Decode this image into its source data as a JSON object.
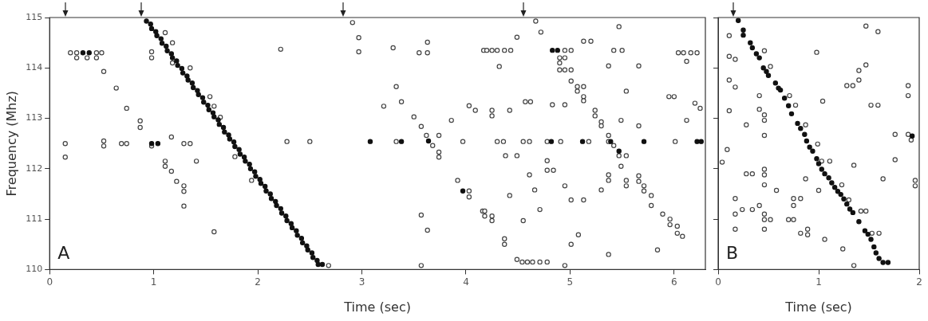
{
  "chart_data": [
    {
      "type": "scatter",
      "xlabel": "Time (sec)",
      "ylabel": "Frequency (Mhz)",
      "xlim": [
        0,
        6.3
      ],
      "xticks": [
        0,
        1,
        2,
        3,
        4,
        5,
        6
      ],
      "ylim": [
        110,
        115
      ],
      "yticks": [
        110,
        111,
        112,
        113,
        114,
        115
      ],
      "marker": "circle",
      "annotations": [
        "A"
      ],
      "series": [
        {
          "color": "#111111",
          "x": [
            0.93,
            0.98,
            1.03,
            1.08,
            1.13,
            1.18,
            1.23,
            1.28,
            1.33,
            1.38,
            1.43,
            1.48,
            1.53,
            1.58,
            1.63,
            1.68,
            1.73,
            1.78,
            1.83,
            1.88,
            1.93,
            1.98,
            2.03,
            2.08,
            2.13,
            2.18,
            2.23,
            2.28,
            2.33,
            2.38,
            2.43,
            2.48,
            2.53,
            2.58,
            0.97,
            1.02,
            1.07,
            1.12,
            1.17,
            1.22,
            1.27,
            1.32,
            1.37,
            1.42,
            1.47,
            1.52,
            1.57,
            1.62,
            1.67,
            1.72,
            1.77,
            1.82,
            1.87,
            1.92,
            1.97,
            2.02,
            2.07,
            2.12,
            2.17,
            2.22,
            2.27,
            2.32,
            2.37,
            2.42,
            2.47,
            2.52,
            2.57,
            2.62,
            0.98,
            1.04,
            3.08,
            3.38,
            3.64,
            3.97,
            4.82,
            5.12,
            5.39,
            5.47,
            5.71,
            6.22,
            6.26,
            4.83,
            4.88,
            0.32,
            0.38
          ],
          "values": [
            114.93,
            114.78,
            114.64,
            114.49,
            114.34,
            114.2,
            114.05,
            113.9,
            113.76,
            113.61,
            113.47,
            113.32,
            113.17,
            113.03,
            112.88,
            112.73,
            112.59,
            112.44,
            112.29,
            112.15,
            112.0,
            111.85,
            111.71,
            111.56,
            111.41,
            111.27,
            111.12,
            110.97,
            110.83,
            110.68,
            110.53,
            110.39,
            110.24,
            110.1,
            114.87,
            114.72,
            114.58,
            114.43,
            114.28,
            114.14,
            113.99,
            113.84,
            113.7,
            113.55,
            113.41,
            113.26,
            113.11,
            112.97,
            112.82,
            112.67,
            112.53,
            112.38,
            112.23,
            112.09,
            111.94,
            111.79,
            111.65,
            111.5,
            111.35,
            111.21,
            111.06,
            110.91,
            110.77,
            110.62,
            110.47,
            110.33,
            110.18,
            110.1,
            112.5,
            112.5,
            112.54,
            112.54,
            112.55,
            111.56,
            112.54,
            112.54,
            112.54,
            112.35,
            112.54,
            112.54,
            112.54,
            114.35,
            114.35,
            114.3,
            114.3
          ]
        },
        {
          "color": "#444444",
          "x": [
            0.2,
            0.26,
            0.45,
            0.5,
            0.26,
            0.36,
            0.45,
            0.52,
            0.64,
            0.74,
            0.87,
            0.87,
            0.15,
            0.15,
            0.52,
            0.52,
            0.69,
            0.74,
            0.98,
            0.98,
            0.98,
            1.17,
            1.29,
            1.35,
            1.11,
            1.11,
            1.17,
            1.22,
            1.29,
            1.29,
            1.29,
            1.41,
            1.58,
            1.11,
            1.18,
            1.18,
            1.35,
            1.54,
            1.58,
            1.64,
            1.78,
            1.94,
            2.91,
            2.97,
            2.97,
            2.22,
            3.3,
            3.63,
            3.55,
            3.63,
            3.33,
            3.21,
            3.38,
            3.5,
            3.57,
            2.28,
            2.5,
            3.33,
            3.62,
            3.68,
            3.74,
            3.74,
            3.74,
            3.86,
            3.97,
            3.92,
            4.03,
            4.03,
            3.57,
            3.63,
            3.57,
            2.68,
            4.17,
            4.03,
            4.09,
            4.16,
            4.67,
            4.72,
            4.49,
            4.2,
            4.25,
            4.3,
            4.37,
            4.43,
            4.32,
            4.95,
            5.01,
            4.9,
            4.95,
            4.9,
            4.9,
            4.95,
            5.01,
            5.13,
            5.2,
            5.42,
            5.5,
            5.47,
            5.37,
            5.66,
            5.01,
            5.07,
            5.13,
            5.07,
            5.13,
            5.13,
            5.54,
            5.95,
            6.0,
            4.57,
            4.62,
            4.25,
            4.25,
            4.42,
            4.83,
            4.95,
            5.24,
            5.24,
            5.3,
            5.3,
            5.49,
            5.66,
            6.12,
            4.3,
            4.36,
            4.55,
            4.61,
            4.78,
            4.91,
            5.18,
            5.37,
            6.01,
            5.37,
            5.42,
            5.47,
            5.54,
            5.49,
            4.38,
            4.49,
            4.78,
            4.78,
            4.84,
            4.61,
            5.37,
            5.37,
            5.54,
            5.54,
            5.66,
            5.66,
            4.95,
            4.66,
            5.3,
            5.71,
            5.71,
            5.78,
            5.78,
            4.42,
            5.01,
            5.13,
            4.71,
            5.89,
            5.96,
            5.96,
            6.03,
            6.03,
            6.08,
            4.18,
            4.18,
            4.25,
            4.25,
            4.55,
            4.37,
            4.37,
            5.08,
            5.01,
            5.37,
            5.84,
            4.49,
            4.54,
            4.59,
            4.64,
            4.71,
            4.78,
            4.95,
            6.04,
            6.09,
            6.16,
            6.22,
            6.12,
            6.2,
            6.25
          ],
          "values": [
            114.3,
            114.3,
            114.3,
            114.3,
            114.2,
            114.2,
            114.2,
            113.93,
            113.6,
            113.2,
            112.95,
            112.82,
            112.5,
            112.23,
            112.55,
            112.45,
            112.5,
            112.5,
            112.45,
            114.32,
            114.2,
            112.63,
            112.5,
            112.5,
            112.15,
            112.05,
            111.95,
            111.75,
            111.66,
            111.55,
            111.26,
            112.15,
            110.75,
            114.7,
            114.5,
            114.1,
            114.0,
            113.43,
            113.24,
            113.02,
            112.24,
            111.77,
            114.9,
            114.6,
            114.32,
            114.37,
            114.4,
            114.51,
            114.3,
            114.3,
            113.63,
            113.24,
            113.33,
            113.03,
            112.84,
            112.54,
            112.54,
            112.54,
            112.66,
            112.46,
            112.66,
            112.33,
            112.23,
            112.96,
            112.54,
            111.77,
            111.56,
            111.44,
            111.08,
            110.78,
            110.08,
            110.08,
            114.35,
            113.25,
            113.16,
            111.16,
            114.93,
            114.71,
            114.61,
            114.35,
            114.35,
            114.35,
            114.35,
            114.35,
            114.03,
            114.35,
            114.35,
            114.2,
            114.2,
            114.1,
            113.96,
            113.96,
            113.96,
            114.53,
            114.53,
            114.35,
            114.35,
            114.82,
            114.04,
            114.04,
            113.74,
            113.63,
            113.63,
            113.54,
            113.43,
            113.35,
            113.54,
            113.43,
            113.43,
            113.33,
            113.33,
            113.16,
            113.05,
            113.16,
            113.27,
            113.27,
            113.16,
            113.05,
            112.93,
            112.85,
            112.96,
            112.85,
            112.96,
            112.54,
            112.54,
            112.54,
            112.54,
            112.54,
            112.54,
            112.54,
            112.54,
            112.54,
            112.66,
            112.46,
            112.26,
            112.26,
            112.05,
            112.26,
            112.26,
            112.16,
            111.97,
            111.97,
            111.88,
            111.88,
            111.77,
            111.77,
            111.66,
            111.86,
            111.75,
            111.66,
            111.58,
            111.58,
            111.66,
            111.56,
            111.47,
            111.27,
            111.47,
            111.38,
            111.38,
            111.19,
            111.1,
            111.0,
            110.89,
            110.86,
            110.72,
            110.66,
            111.16,
            111.06,
            111.06,
            110.97,
            110.97,
            110.61,
            110.5,
            110.69,
            110.5,
            110.3,
            110.39,
            110.2,
            110.15,
            110.15,
            110.15,
            110.15,
            110.15,
            110.08,
            114.3,
            114.3,
            114.3,
            114.3,
            114.13,
            113.3,
            113.2
          ]
        }
      ]
    },
    {
      "type": "scatter",
      "xlabel": "Time (sec)",
      "xlim": [
        0,
        2
      ],
      "xticks": [
        0,
        1,
        2
      ],
      "ylim": [
        110,
        115
      ],
      "yticks": [
        110,
        111,
        112,
        113,
        114,
        115
      ],
      "tick_labels": "x",
      "marker": "circle",
      "annotations": [
        "B"
      ],
      "series": [
        {
          "color": "#111111",
          "x": [
            0.2,
            0.32,
            0.38,
            0.45,
            0.57,
            0.62,
            0.73,
            0.79,
            0.86,
            0.91,
            0.98,
            1.03,
            1.1,
            1.16,
            1.22,
            1.28,
            1.34,
            1.46,
            1.52,
            1.57,
            1.64,
            1.69,
            0.25,
            0.25,
            0.34,
            0.41,
            0.48,
            0.5,
            0.6,
            0.66,
            0.7,
            0.82,
            0.88,
            0.94,
            1.0,
            1.06,
            1.13,
            1.19,
            1.25,
            1.31,
            1.4,
            1.49,
            1.55,
            1.6,
            1.66,
            1.93
          ],
          "values": [
            114.94,
            114.5,
            114.28,
            114.0,
            113.7,
            113.56,
            113.09,
            112.9,
            112.68,
            112.43,
            112.2,
            111.99,
            111.82,
            111.63,
            111.49,
            111.3,
            111.13,
            110.77,
            110.6,
            110.33,
            110.14,
            110.14,
            114.75,
            114.65,
            114.4,
            114.2,
            113.93,
            113.85,
            113.6,
            113.4,
            113.25,
            112.8,
            112.55,
            112.35,
            112.1,
            111.9,
            111.72,
            111.55,
            111.4,
            111.2,
            110.95,
            110.7,
            110.45,
            110.22,
            null,
            112.65
          ]
        },
        {
          "color": "#444444",
          "x": [
            0.11,
            0.11,
            0.17,
            0.11,
            0.17,
            0.41,
            0.11,
            0.28,
            0.41,
            0.46,
            0.46,
            0.46,
            0.09,
            0.04,
            0.28,
            0.34,
            0.46,
            0.46,
            0.46,
            0.58,
            0.17,
            0.17,
            0.24,
            0.34,
            0.41,
            0.46,
            0.46,
            0.52,
            0.17,
            0.46,
            0.75,
            0.82,
            0.75,
            0.7,
            0.75,
            0.82,
            0.89,
            0.89,
            0.87,
            1.0,
            1.04,
            0.98,
            1.06,
            1.24,
            1.35,
            1.35,
            1.28,
            1.34,
            1.4,
            1.4,
            1.47,
            1.47,
            1.59,
            1.52,
            1.59,
            1.64,
            1.76,
            1.76,
            1.89,
            1.89,
            1.89,
            1.92,
            1.96,
            1.96,
            0.46,
            0.52,
            0.71,
            0.77,
            0.87,
            0.99,
            1.03,
            1.11,
            1.23,
            1.3,
            1.42,
            1.47,
            1.53,
            1.6
          ],
          "values": [
            114.64,
            114.23,
            114.17,
            113.76,
            113.62,
            113.45,
            113.15,
            112.87,
            113.18,
            113.07,
            112.96,
            112.66,
            112.38,
            112.13,
            111.9,
            111.9,
            111.99,
            111.88,
            111.68,
            111.57,
            111.41,
            111.1,
            111.19,
            111.19,
            111.27,
            111.1,
            110.99,
            110.99,
            110.8,
            110.8,
            111.41,
            111.41,
            111.27,
            110.99,
            110.99,
            110.72,
            110.8,
            110.69,
            111.8,
            111.57,
            113.34,
            114.31,
            110.6,
            110.41,
            110.08,
            112.07,
            113.65,
            113.65,
            113.76,
            113.95,
            114.06,
            114.83,
            114.72,
            113.26,
            113.26,
            111.8,
            112.68,
            112.18,
            113.65,
            113.45,
            112.68,
            112.57,
            111.77,
            111.66,
            114.34,
            114.03,
            113.45,
            113.26,
            112.87,
            112.49,
            112.15,
            112.15,
            111.68,
            111.38,
            111.16,
            111.16,
            110.72,
            110.72
          ]
        }
      ]
    }
  ]
}
